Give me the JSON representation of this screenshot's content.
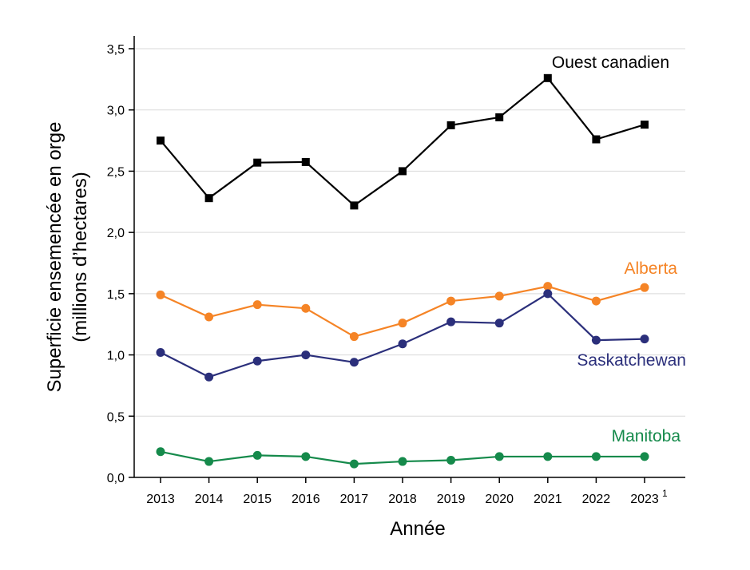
{
  "chart_data": {
    "type": "line",
    "xlabel": "Année",
    "ylabel_line1": "Superficie ensemencée en orge",
    "ylabel_line2": "(millions d’hectares)",
    "x": [
      "2013",
      "2014",
      "2015",
      "2016",
      "2017",
      "2018",
      "2019",
      "2020",
      "2021",
      "2022",
      "2023"
    ],
    "x_superscript": "1",
    "ylim": [
      0,
      3.5
    ],
    "yticks": [
      "0,0",
      "0,5",
      "1,0",
      "1,5",
      "2,0",
      "2,5",
      "3,0",
      "3,5"
    ],
    "ytick_values": [
      0,
      0.5,
      1.0,
      1.5,
      2.0,
      2.5,
      3.0,
      3.5
    ],
    "grid": true,
    "series": [
      {
        "name": "Ouest canadien",
        "color": "#000000",
        "marker": "square",
        "values": [
          2.75,
          2.28,
          2.57,
          2.575,
          2.22,
          2.5,
          2.875,
          2.94,
          3.26,
          2.76,
          2.88
        ]
      },
      {
        "name": "Alberta",
        "color": "#f58426",
        "marker": "circle",
        "values": [
          1.49,
          1.31,
          1.41,
          1.38,
          1.15,
          1.26,
          1.44,
          1.48,
          1.56,
          1.44,
          1.55
        ]
      },
      {
        "name": "Saskatchewan",
        "color": "#2b2f7b",
        "marker": "circle",
        "values": [
          1.02,
          0.82,
          0.95,
          1.0,
          0.94,
          1.09,
          1.27,
          1.26,
          1.5,
          1.12,
          1.13
        ]
      },
      {
        "name": "Manitoba",
        "color": "#158a4b",
        "marker": "circle",
        "values": [
          0.21,
          0.13,
          0.18,
          0.17,
          0.11,
          0.13,
          0.14,
          0.17,
          0.17,
          0.17,
          0.17
        ]
      }
    ]
  }
}
